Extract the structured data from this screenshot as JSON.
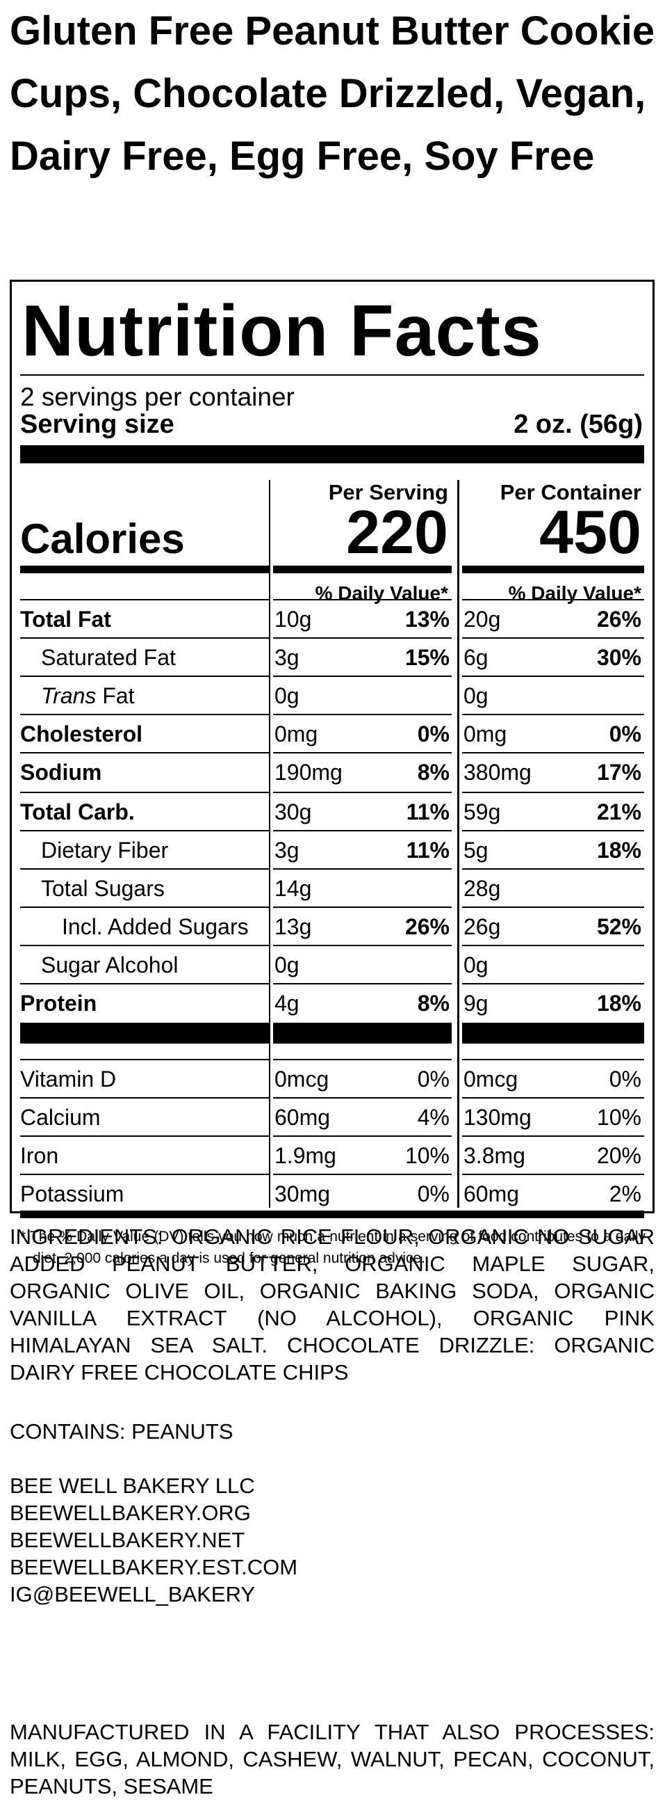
{
  "product_title": "Gluten Free Peanut Butter Cookie Cups, Chocolate Drizzled, Vegan, Dairy Free, Egg Free, Soy Free",
  "label": {
    "heading": "Nutrition Facts",
    "servings_per_container": "2 servings per container",
    "serving_size_label": "Serving size",
    "serving_size_value": "2 oz. (56g)",
    "per_serving_label": "Per Serving",
    "per_container_label": "Per Container",
    "calories_label": "Calories",
    "calories_per_serving": "220",
    "calories_per_container": "450",
    "dv_header": "% Daily Value*",
    "rows": [
      {
        "name": "Total Fat",
        "s_amt": "10g",
        "s_pct": "13%",
        "c_amt": "20g",
        "c_pct": "26%"
      },
      {
        "name": "Saturated Fat",
        "s_amt": "3g",
        "s_pct": "15%",
        "c_amt": "6g",
        "c_pct": "30%"
      },
      {
        "name_italic": "Trans",
        "name": " Fat",
        "s_amt": "0g",
        "s_pct": "",
        "c_amt": "0g",
        "c_pct": ""
      },
      {
        "name": "Cholesterol",
        "s_amt": "0mg",
        "s_pct": "0%",
        "c_amt": "0mg",
        "c_pct": "0%"
      },
      {
        "name": "Sodium",
        "s_amt": "190mg",
        "s_pct": "8%",
        "c_amt": "380mg",
        "c_pct": "17%"
      },
      {
        "name": "Total Carb.",
        "s_amt": "30g",
        "s_pct": "11%",
        "c_amt": "59g",
        "c_pct": "21%"
      },
      {
        "name": "Dietary Fiber",
        "s_amt": "3g",
        "s_pct": "11%",
        "c_amt": "5g",
        "c_pct": "18%"
      },
      {
        "name": "Total Sugars",
        "s_amt": "14g",
        "s_pct": "",
        "c_amt": "28g",
        "c_pct": ""
      },
      {
        "name": "Incl. Added Sugars",
        "s_amt": "13g",
        "s_pct": "26%",
        "c_amt": "26g",
        "c_pct": "52%"
      },
      {
        "name": "Sugar Alcohol",
        "s_amt": "0g",
        "s_pct": "",
        "c_amt": "0g",
        "c_pct": ""
      },
      {
        "name": "Protein",
        "s_amt": "4g",
        "s_pct": "8%",
        "c_amt": "9g",
        "c_pct": "18%"
      },
      {
        "name": "Vitamin D",
        "s_amt": "0mcg",
        "s_pct": "0%",
        "c_amt": "0mcg",
        "c_pct": "0%"
      },
      {
        "name": "Calcium",
        "s_amt": "60mg",
        "s_pct": "4%",
        "c_amt": "130mg",
        "c_pct": "10%"
      },
      {
        "name": "Iron",
        "s_amt": "1.9mg",
        "s_pct": "10%",
        "c_amt": "3.8mg",
        "c_pct": "20%"
      },
      {
        "name": "Potassium",
        "s_amt": "30mg",
        "s_pct": "0%",
        "c_amt": "60mg",
        "c_pct": "2%"
      }
    ],
    "footnote": "* The % Daily Value (DV) tells you how much a nutrient in a serving of food contributes to a daily diet. 2,000 calories a day is used for general nutrition advice."
  },
  "ingredients": "INGREDIENTS: ORGANIC RICE FLOUR, ORGANIC NO SUGAR ADDED PEANUT BUTTER, ORGANIC MAPLE SUGAR, ORGANIC OLIVE OIL, ORGANIC BAKING SODA, ORGANIC VANILLA EXTRACT (NO ALCOHOL), ORGANIC PINK HIMALAYAN SEA SALT. CHOCOLATE DRIZZLE: ORGANIC DAIRY FREE CHOCOLATE CHIPS",
  "contains": "CONTAINS: PEANUTS",
  "company": {
    "name": "BEE WELL BAKERY LLC",
    "site1": "BEEWELLBAKERY.ORG",
    "site2": "BEEWELLBAKERY.NET",
    "site3": "BEEWELLBAKERY.EST.COM",
    "social": "IG@BEEWELL_BAKERY"
  },
  "facility": "MANUFACTURED IN A FACILITY THAT ALSO PROCESSES: MILK, EGG, ALMOND, CASHEW, WALNUT, PECAN, COCONUT, PEANUTS, SESAME"
}
